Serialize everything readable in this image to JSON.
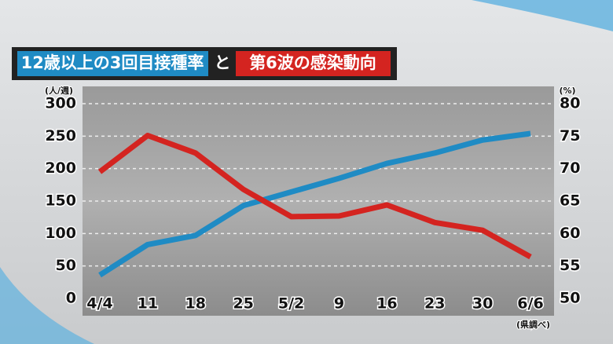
{
  "chart_data": {
    "type": "line",
    "conjunction": "と",
    "categories": [
      "4/4",
      "11",
      "18",
      "25",
      "5/2",
      "9",
      "16",
      "23",
      "30",
      "6/6"
    ],
    "series": [
      {
        "name": "12歳以上の3回目接種率",
        "color": "#1f8bc4",
        "axis": "y2",
        "values": [
          53.6,
          58.3,
          59.7,
          64.3,
          66.4,
          68.5,
          70.8,
          72.4,
          74.4,
          75.4
        ]
      },
      {
        "name": "第6波の感染動向",
        "color": "#d42420",
        "values": [
          195,
          251,
          224,
          168,
          126,
          127,
          144,
          117,
          105,
          64
        ]
      }
    ],
    "ylabel": "(人/週)",
    "y2label": "(%)",
    "ylim": [
      0,
      300
    ],
    "yticks": [
      0,
      50,
      100,
      150,
      200,
      250,
      300
    ],
    "y2lim": [
      50,
      80
    ],
    "y2ticks": [
      50,
      55,
      60,
      65,
      70,
      75,
      80
    ],
    "grid": true,
    "source": "(県調べ)"
  }
}
